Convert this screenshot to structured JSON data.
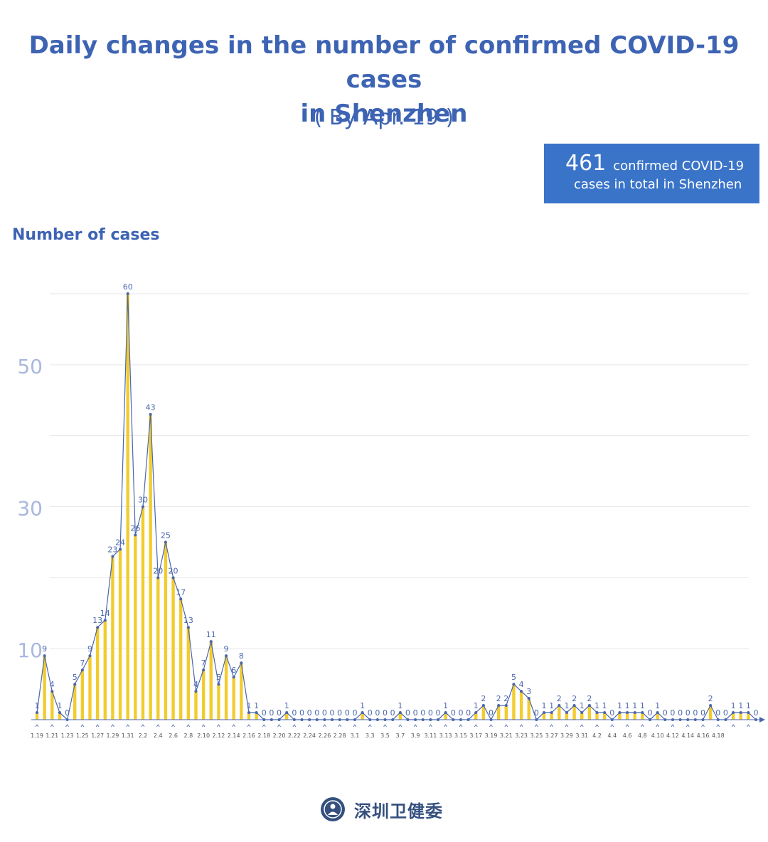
{
  "header": {
    "title_line1": "Daily changes in the number of confirmed COVID-19 cases",
    "title_line2": "in Shenzhen",
    "subtitle": "( By Apr. 19 )"
  },
  "total_box": {
    "number": "461",
    "text_line1": "confirmed COVID-19",
    "text_line2": "cases in total in Shenzhen"
  },
  "logo": {
    "text": "深圳卫健委"
  },
  "colors": {
    "bar": "#f2cc2e",
    "line": "#4a66ad",
    "title": "#3d63b3",
    "box": "#3a74c9",
    "ytick": "#a9b8de",
    "grid": "#e6e6e6"
  },
  "chart_data": {
    "type": "bar",
    "title": "Daily changes in the number of confirmed COVID-19 cases in Shenzhen",
    "ylabel": "Number of cases",
    "xlabel": "",
    "ylim": [
      0,
      60
    ],
    "yticks": [
      10,
      30,
      50
    ],
    "grid": true,
    "start_label": "1.19",
    "x_tick_labels": [
      "1.19",
      "1.21",
      "1.23",
      "1.25",
      "1.27",
      "1.29",
      "1.31",
      "2.2",
      "2.4",
      "2.6",
      "2.8",
      "2.10",
      "2.12",
      "2.14",
      "2.16",
      "2.18",
      "2.20",
      "2.22",
      "2.24",
      "2.26",
      "2.28",
      "3.1",
      "3.3",
      "3.5",
      "3.7",
      "3.9",
      "3.11",
      "3.13",
      "3.15",
      "3.17",
      "3.19",
      "3.21",
      "3.23",
      "3.25",
      "3.27",
      "3.29",
      "3.31",
      "4.2",
      "4.4",
      "4.6",
      "4.8",
      "4.10",
      "4.12",
      "4.14",
      "4.16",
      "4.18"
    ],
    "values": [
      1,
      9,
      4,
      1,
      0,
      5,
      7,
      9,
      13,
      14,
      23,
      24,
      60,
      26,
      30,
      43,
      20,
      25,
      20,
      17,
      13,
      4,
      7,
      11,
      5,
      9,
      6,
      8,
      1,
      1,
      0,
      0,
      0,
      1,
      0,
      0,
      0,
      0,
      0,
      0,
      0,
      0,
      0,
      1,
      0,
      0,
      0,
      0,
      1,
      0,
      0,
      0,
      0,
      0,
      1,
      0,
      0,
      0,
      1,
      2,
      0,
      2,
      2,
      5,
      4,
      3,
      0,
      1,
      1,
      2,
      1,
      2,
      1,
      2,
      1,
      1,
      0,
      1,
      1,
      1,
      1,
      0,
      1,
      0,
      0,
      0,
      0,
      0,
      0,
      2,
      0,
      0,
      1,
      1,
      1,
      0
    ],
    "series": [
      {
        "values": [
          1,
          9,
          4,
          1,
          0,
          5,
          7,
          9,
          13,
          14,
          23,
          24,
          60,
          26,
          30,
          43,
          20,
          25,
          20,
          17,
          13,
          4,
          7,
          11,
          5,
          9,
          6,
          8,
          1,
          1,
          0,
          0,
          0,
          1,
          0,
          0,
          0,
          0,
          0,
          0,
          0,
          0,
          0,
          1,
          0,
          0,
          0,
          0,
          1,
          0,
          0,
          0,
          0,
          0,
          1,
          0,
          0,
          0,
          1,
          2,
          0,
          2,
          2,
          5,
          4,
          3,
          0,
          1,
          1,
          2,
          1,
          2,
          1,
          2,
          1,
          1,
          0,
          1,
          1,
          1,
          1,
          0,
          1,
          0,
          0,
          0,
          0,
          0,
          0,
          2,
          0,
          0,
          1,
          1,
          1,
          0
        ]
      }
    ]
  }
}
